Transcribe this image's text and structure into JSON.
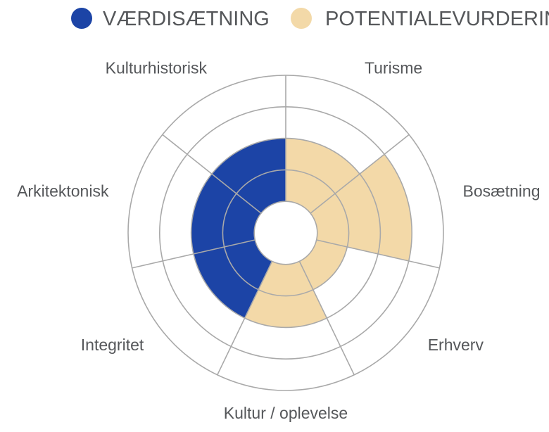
{
  "chart_data": {
    "type": "polar-area",
    "rmax": 5,
    "inner_hole": 1,
    "ring_levels": [
      1,
      2,
      3,
      4,
      5
    ],
    "legend": [
      {
        "label": "VÆRDISÆTNING",
        "color": "#1c44a6"
      },
      {
        "label": "POTENTIALEVURDERING",
        "color": "#f3d9a8"
      }
    ],
    "sectors": [
      {
        "label": "Turisme",
        "series": "POTENTIALEVURDERING",
        "value": 3
      },
      {
        "label": "Bosætning",
        "series": "POTENTIALEVURDERING",
        "value": 4
      },
      {
        "label": "Erhverv",
        "series": "POTENTIALEVURDERING",
        "value": 2
      },
      {
        "label": "Kultur / oplevelse",
        "series": "POTENTIALEVURDERING",
        "value": 3
      },
      {
        "label": "Integritet",
        "series": "VÆRDISÆTNING",
        "value": 3
      },
      {
        "label": "Arkitektonisk",
        "series": "VÆRDISÆTNING",
        "value": 3
      },
      {
        "label": "Kulturhistorisk",
        "series": "VÆRDISÆTNING",
        "value": 3
      }
    ],
    "grid": true
  }
}
